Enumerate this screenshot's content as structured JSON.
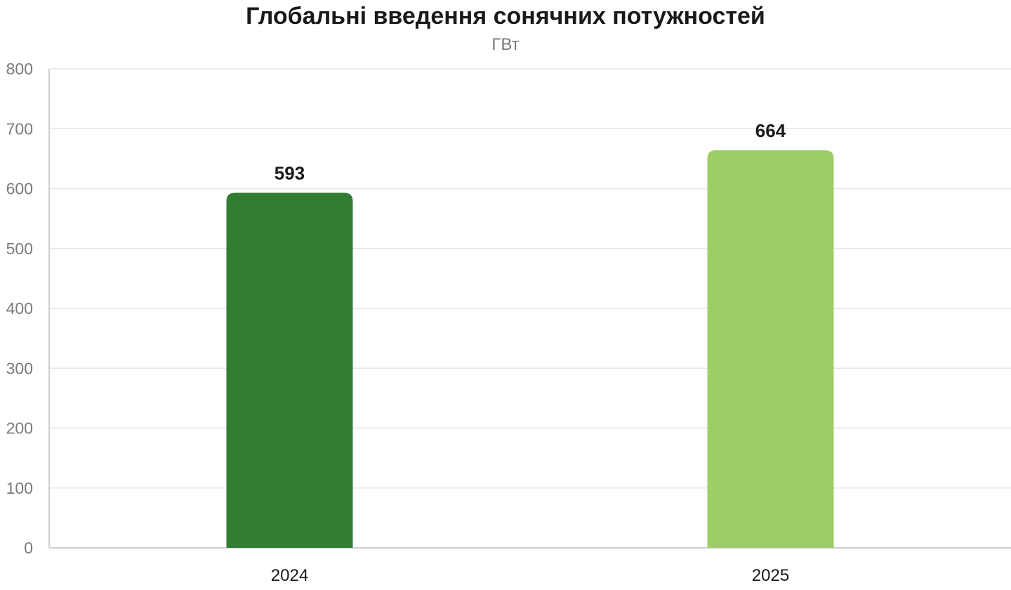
{
  "chart_data": {
    "type": "bar",
    "title": "Глобальні введення сонячних потужностей",
    "subtitle": "ГВт",
    "categories": [
      "2024",
      "2025"
    ],
    "values": [
      593,
      664
    ],
    "colors": [
      "#317d33",
      "#9ecd67"
    ],
    "ylim": [
      0,
      800
    ],
    "yticks": [
      0,
      100,
      200,
      300,
      400,
      500,
      600,
      700,
      800
    ],
    "grid": true,
    "legend": "none",
    "data_labels": true
  }
}
